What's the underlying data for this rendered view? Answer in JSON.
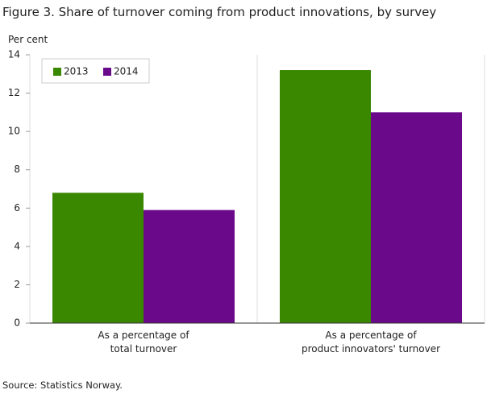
{
  "chart_data": {
    "type": "bar",
    "title": "Figure 3. Share of turnover coming from product innovations, by survey",
    "y_label": "Per cent",
    "source": "Source: Statistics Norway.",
    "categories": [
      "As a percentage of\ntotal turnover",
      "As a percentage of\nproduct innovators' turnover"
    ],
    "series": [
      {
        "name": "2013",
        "color": "#3a8700",
        "values": [
          6.8,
          13.2
        ]
      },
      {
        "name": "2014",
        "color": "#6a0a8a",
        "values": [
          5.9,
          11.0
        ]
      }
    ],
    "ylim": [
      0,
      14
    ],
    "yticks": [
      0,
      2,
      4,
      6,
      8,
      10,
      12,
      14
    ],
    "legend": "top-left"
  }
}
